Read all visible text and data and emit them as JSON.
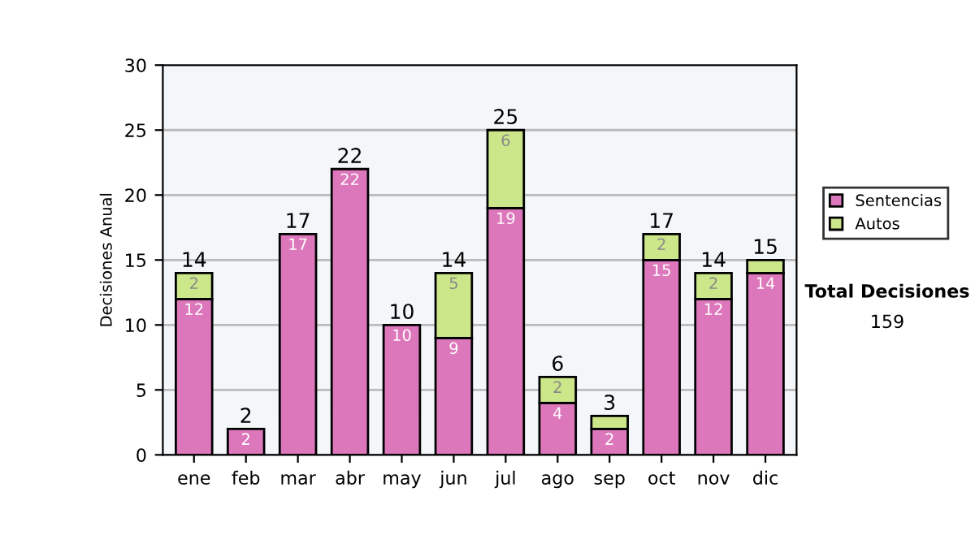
{
  "chart_data": {
    "type": "bar",
    "stacked": true,
    "ylabel": "Decisiones Anual",
    "categories": [
      "ene",
      "feb",
      "mar",
      "abr",
      "may",
      "jun",
      "jul",
      "ago",
      "sep",
      "oct",
      "nov",
      "dic"
    ],
    "series": [
      {
        "name": "Sentencias",
        "color": "#dd77bb",
        "values": [
          12,
          2,
          17,
          22,
          10,
          9,
          19,
          4,
          2,
          15,
          12,
          14
        ],
        "value_labels": [
          "12",
          "2",
          "17",
          "22",
          "10",
          "9",
          "19",
          "4",
          "2",
          "15",
          "12",
          "14"
        ]
      },
      {
        "name": "Autos",
        "color": "#cce68a",
        "values": [
          2,
          null,
          null,
          null,
          null,
          5,
          6,
          2,
          1,
          2,
          2,
          1
        ],
        "value_labels": [
          "2",
          null,
          null,
          null,
          null,
          "5",
          "6",
          "2",
          null,
          "2",
          "2",
          null
        ]
      }
    ],
    "totals": [
      "14",
      "2",
      "17",
      "22",
      "10",
      "14",
      "25",
      "6",
      "3",
      "17",
      "14",
      "15"
    ],
    "ylim": [
      0,
      30
    ],
    "yticks": [
      0,
      5,
      10,
      15,
      20,
      25,
      30
    ],
    "grid": "y",
    "legend": "right",
    "annotations": [
      "Total Decisiones",
      "159"
    ]
  }
}
